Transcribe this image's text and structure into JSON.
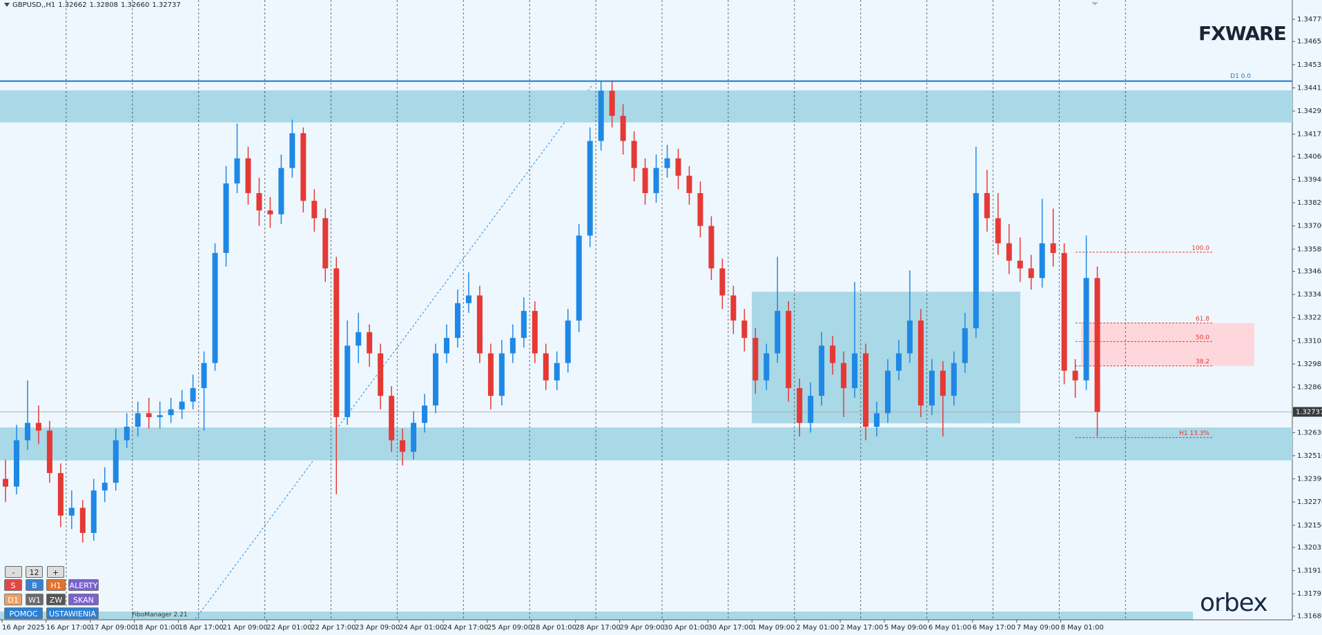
{
  "header": {
    "symbol": "GBPUSD,,H1",
    "quote": [
      1.32662,
      1.32808,
      {
        "value": 1.3266,
        "label": "1.32660"
      },
      1.32737
    ]
  },
  "logo": "FXWARE",
  "brand": "orbex",
  "fibo_manager": "FiboManager 2.21",
  "controls": {
    "minus": "-",
    "zoom": "12",
    "plus": "+",
    "buttons": [
      [
        "S",
        "B",
        "H1",
        "ALERTY"
      ],
      [
        "D1",
        "W1",
        "ZW",
        "SKAN"
      ],
      [
        "POMOC",
        "USTAWIENIA"
      ]
    ]
  },
  "chart_data": {
    "type": "candlestick",
    "categories": [
      "16 Apr 2025",
      null,
      null,
      null,
      "16 Apr 17:00",
      null,
      null,
      null,
      "17 Apr 09:00",
      null,
      null,
      null,
      "18 Apr 01:00",
      null,
      null,
      null,
      "18 Apr 17:00",
      null,
      null,
      null,
      "21 Apr 09:00",
      null,
      null,
      null,
      "22 Apr 01:00",
      null,
      null,
      null,
      "22 Apr 17:00",
      null,
      null,
      null,
      "23 Apr 09:00",
      null,
      null,
      null,
      "24 Apr 01:00",
      null,
      null,
      null,
      "24 Apr 17:00",
      null,
      null,
      null,
      "25 Apr 09:00",
      null,
      null,
      null,
      "28 Apr 01:00",
      null,
      null,
      null,
      "28 Apr 17:00",
      null,
      null,
      null,
      "29 Apr 09:00",
      null,
      null,
      null,
      "30 Apr 01:00",
      null,
      null,
      null,
      "30 Apr 17:00",
      null,
      null,
      null,
      "1 May 09:00",
      null,
      null,
      null,
      "2 May 01:00",
      null,
      null,
      null,
      "2 May 17:00",
      null,
      null,
      null,
      "5 May 09:00",
      null,
      null,
      null,
      "6 May 01:00",
      null,
      null,
      null,
      "6 May 17:00",
      null,
      null,
      null,
      "7 May 09:00",
      null,
      null,
      null,
      "8 May 01:00",
      null,
      null,
      null
    ],
    "ohlc": [
      [
        1.3239,
        1.3249,
        1.3227,
        1.3235
      ],
      [
        1.3235,
        1.3267,
        1.3231,
        1.3259
      ],
      [
        1.3259,
        1.329,
        1.3254,
        1.3268
      ],
      [
        1.3268,
        1.3277,
        1.3257,
        1.3264
      ],
      [
        1.3264,
        1.3269,
        1.3237,
        1.3242
      ],
      [
        1.3242,
        1.3247,
        1.3214,
        1.322
      ],
      [
        1.322,
        1.3233,
        1.3213,
        1.3224
      ],
      [
        1.3224,
        1.3228,
        1.3206,
        1.3211
      ],
      [
        1.3211,
        1.3239,
        1.3207,
        1.3233
      ],
      [
        1.3233,
        1.3245,
        1.3227,
        1.3237
      ],
      [
        1.3237,
        1.3265,
        1.3233,
        1.3259
      ],
      [
        1.3259,
        1.3273,
        1.3255,
        1.3266
      ],
      [
        1.3266,
        1.3279,
        1.3261,
        1.3273
      ],
      [
        1.3273,
        1.3281,
        1.3265,
        1.3271
      ],
      [
        1.3271,
        1.3279,
        1.3265,
        1.3272
      ],
      [
        1.3272,
        1.3281,
        1.3268,
        1.3275
      ],
      [
        1.3275,
        1.3285,
        1.327,
        1.3279
      ],
      [
        1.3279,
        1.3293,
        1.3275,
        1.3286
      ],
      [
        1.3286,
        1.3305,
        1.3264,
        1.3299
      ],
      [
        1.3299,
        1.3361,
        1.3295,
        1.3356
      ],
      [
        1.3356,
        1.3401,
        1.3349,
        1.3392
      ],
      [
        1.3392,
        1.3423,
        1.3387,
        1.3405
      ],
      [
        1.3405,
        1.3411,
        1.3381,
        1.3387
      ],
      [
        1.3387,
        1.3395,
        1.337,
        1.3378
      ],
      [
        1.3378,
        1.3385,
        1.3369,
        1.3376
      ],
      [
        1.3376,
        1.3407,
        1.3371,
        1.34
      ],
      [
        1.34,
        1.3425,
        1.3395,
        1.3418
      ],
      [
        1.3418,
        1.3421,
        1.3377,
        1.3383
      ],
      [
        1.3383,
        1.3389,
        1.3367,
        1.3374
      ],
      [
        1.3374,
        1.3379,
        1.3341,
        1.3348
      ],
      [
        1.3348,
        1.3354,
        1.3231,
        1.3271
      ],
      [
        1.3271,
        1.3321,
        1.3267,
        1.3308
      ],
      [
        1.3308,
        1.3325,
        1.3299,
        1.3315
      ],
      [
        1.3315,
        1.3319,
        1.3297,
        1.3304
      ],
      [
        1.3304,
        1.3309,
        1.3275,
        1.3282
      ],
      [
        1.3282,
        1.3287,
        1.3253,
        1.3259
      ],
      [
        1.3259,
        1.3265,
        1.3246,
        1.3253
      ],
      [
        1.3253,
        1.3274,
        1.3249,
        1.3268
      ],
      [
        1.3268,
        1.3283,
        1.3263,
        1.3277
      ],
      [
        1.3277,
        1.3309,
        1.3273,
        1.3304
      ],
      [
        1.3304,
        1.3319,
        1.3299,
        1.3312
      ],
      [
        1.3312,
        1.3337,
        1.3307,
        1.333
      ],
      [
        1.333,
        1.3346,
        1.3325,
        1.3334
      ],
      [
        1.3334,
        1.3339,
        1.3299,
        1.3304
      ],
      [
        1.3304,
        1.3309,
        1.3275,
        1.3282
      ],
      [
        1.3282,
        1.3311,
        1.3277,
        1.3304
      ],
      [
        1.3304,
        1.3319,
        1.3299,
        1.3312
      ],
      [
        1.3312,
        1.3333,
        1.3307,
        1.3326
      ],
      [
        1.3326,
        1.3331,
        1.3299,
        1.3304
      ],
      [
        1.3304,
        1.3309,
        1.3285,
        1.329
      ],
      [
        1.329,
        1.3305,
        1.3285,
        1.3299
      ],
      [
        1.3299,
        1.3327,
        1.3294,
        1.3321
      ],
      [
        1.3321,
        1.3371,
        1.3315,
        1.3365
      ],
      [
        1.3365,
        1.3421,
        1.3359,
        1.3414
      ],
      [
        1.3414,
        1.3445,
        1.3409,
        1.344
      ],
      [
        1.344,
        1.3445,
        1.3421,
        1.3427
      ],
      [
        1.3427,
        1.3433,
        1.3407,
        1.3414
      ],
      [
        1.3414,
        1.3419,
        1.3393,
        1.34
      ],
      [
        1.34,
        1.3405,
        1.3381,
        1.3387
      ],
      [
        1.3387,
        1.3407,
        1.3382,
        1.34
      ],
      [
        1.34,
        1.3412,
        1.3395,
        1.3405
      ],
      [
        1.3405,
        1.341,
        1.3389,
        1.3396
      ],
      [
        1.3396,
        1.3401,
        1.3381,
        1.3387
      ],
      [
        1.3387,
        1.3393,
        1.3364,
        1.337
      ],
      [
        1.337,
        1.3375,
        1.3342,
        1.3348
      ],
      [
        1.3348,
        1.3353,
        1.3327,
        1.3334
      ],
      [
        1.3334,
        1.3339,
        1.3314,
        1.3321
      ],
      [
        1.3321,
        1.3327,
        1.3305,
        1.3312
      ],
      [
        1.3312,
        1.3317,
        1.3283,
        1.329
      ],
      [
        1.329,
        1.3309,
        1.3285,
        1.3304
      ],
      [
        1.3304,
        1.3354,
        1.3299,
        1.3326
      ],
      [
        1.3326,
        1.3331,
        1.3279,
        1.3286
      ],
      [
        1.3286,
        1.3291,
        1.3261,
        1.3268
      ],
      [
        1.3268,
        1.3289,
        1.3263,
        1.3282
      ],
      [
        1.3282,
        1.3315,
        1.3277,
        1.3308
      ],
      [
        1.3308,
        1.3313,
        1.3293,
        1.3299
      ],
      [
        1.3299,
        1.3305,
        1.3271,
        1.3286
      ],
      [
        1.3286,
        1.3341,
        1.3281,
        1.3304
      ],
      [
        1.3304,
        1.3309,
        1.3259,
        1.3266
      ],
      [
        1.3266,
        1.3279,
        1.3261,
        1.3273
      ],
      [
        1.3273,
        1.3301,
        1.3268,
        1.3295
      ],
      [
        1.3295,
        1.3311,
        1.329,
        1.3304
      ],
      [
        1.3304,
        1.3347,
        1.3299,
        1.3321
      ],
      [
        1.3321,
        1.3327,
        1.3271,
        1.3277
      ],
      [
        1.3277,
        1.3301,
        1.3272,
        1.3295
      ],
      [
        1.3295,
        1.33,
        1.3261,
        1.3282
      ],
      [
        1.3282,
        1.3305,
        1.3277,
        1.3299
      ],
      [
        1.3299,
        1.3325,
        1.3294,
        1.3317
      ],
      [
        1.3317,
        1.3411,
        1.3312,
        1.3387
      ],
      [
        1.3387,
        1.3399,
        1.3367,
        1.3374
      ],
      [
        1.3374,
        1.3387,
        1.3355,
        1.3361
      ],
      [
        1.3361,
        1.3371,
        1.3345,
        1.3352
      ],
      [
        1.3352,
        1.3364,
        1.3341,
        1.3348
      ],
      [
        1.3348,
        1.3355,
        1.3337,
        1.3343
      ],
      [
        1.3343,
        1.3384,
        1.3338,
        1.3361
      ],
      [
        1.3361,
        1.3379,
        1.3349,
        1.3356
      ],
      [
        1.3356,
        1.3361,
        1.3288,
        1.3295
      ],
      [
        1.3295,
        1.3301,
        1.3281,
        1.329
      ],
      [
        1.329,
        1.3365,
        1.3285,
        1.3343
      ],
      [
        1.3343,
        1.3349,
        1.3261,
        1.32737
      ]
    ],
    "up_color": "#1e88e5",
    "down_color": "#e53935",
    "ylim": [
      1.3166,
      1.3487
    ],
    "yticks": [
      {
        "value": 1.3477,
        "label": "1.34770"
      },
      1.34655,
      1.34535,
      1.34415,
      1.34295,
      1.34175,
      {
        "value": 1.3406,
        "label": "1.34060"
      },
      {
        "value": 1.3394,
        "label": "1.33940"
      },
      {
        "value": 1.3382,
        "label": "1.33820"
      },
      {
        "value": 1.337,
        "label": "1.33700"
      },
      {
        "value": 1.3358,
        "label": "1.33580"
      },
      1.33465,
      1.33345,
      1.33225,
      1.33105,
      1.32985,
      1.32865,
      {
        "value": 1.3263,
        "label": "1.32630"
      },
      {
        "value": 1.3251,
        "label": "1.32510"
      },
      {
        "value": 1.3239,
        "label": "1.32390"
      },
      {
        "value": 1.3227,
        "label": "1.32270"
      },
      {
        "value": 1.3215,
        "label": "1.32150"
      },
      1.32035,
      1.31915,
      1.31795,
      {
        "value": 1.3168,
        "label": "1.31680"
      }
    ],
    "zones": [
      {
        "top": 1.34402,
        "bottom": 1.34236
      },
      {
        "top": 1.32656,
        "bottom": 1.32486
      },
      {
        "top": 1.33359,
        "bottom": 1.32678
      }
    ],
    "zone_color": "#a9d8e6",
    "d1_level": {
      "label": "D1 0.0",
      "value": 1.3445,
      "color": "#1976d2"
    },
    "fib_levels": [
      {
        "label": "100.0",
        "value": 1.33564
      },
      {
        "label": "61.8",
        "value": 1.33197
      },
      {
        "label": "50.0",
        "value": 1.33101
      },
      {
        "label": "38.2",
        "value": 1.32975
      },
      {
        "label": "H1 13.3%",
        "value": 1.32604
      }
    ],
    "fib_color": "#e53935"
  }
}
